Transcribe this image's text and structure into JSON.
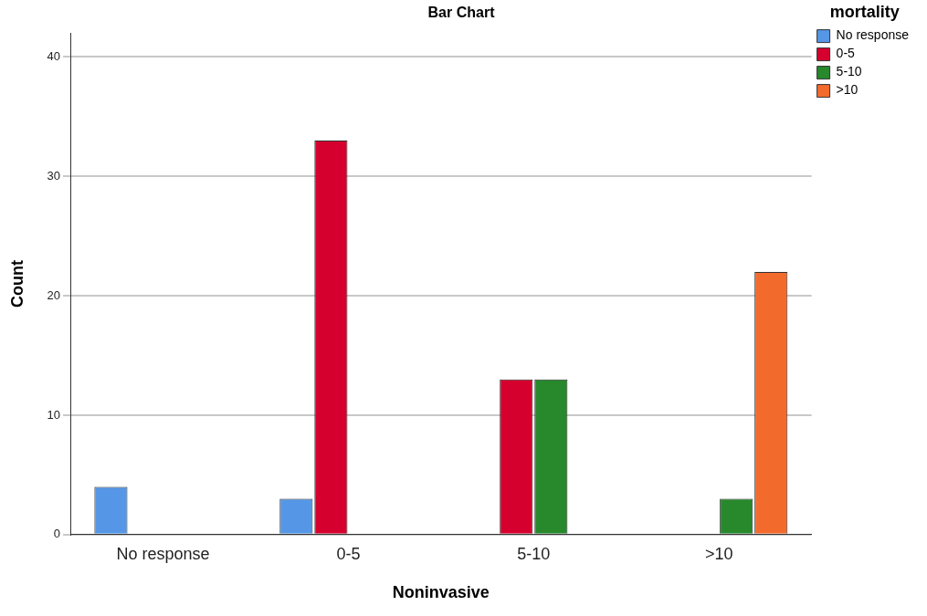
{
  "chart_data": {
    "type": "bar",
    "title": "Bar Chart",
    "xlabel": "Noninvasive",
    "ylabel": "Count",
    "legend_title": "mortality",
    "categories": [
      "No response",
      "0-5",
      "5-10",
      ">10"
    ],
    "series": [
      {
        "name": "No response",
        "color": "#5596e6",
        "values": [
          4,
          3,
          null,
          null
        ]
      },
      {
        "name": "0-5",
        "color": "#d5002e",
        "values": [
          null,
          33,
          13,
          null
        ]
      },
      {
        "name": "5-10",
        "color": "#27882c",
        "values": [
          null,
          null,
          13,
          3
        ]
      },
      {
        "name": ">10",
        "color": "#f36a2d",
        "values": [
          null,
          null,
          null,
          22
        ]
      }
    ],
    "ylim": [
      0,
      42
    ],
    "yticks": [
      0,
      10,
      20,
      30,
      40
    ],
    "grid": "y",
    "legend": "top right"
  }
}
